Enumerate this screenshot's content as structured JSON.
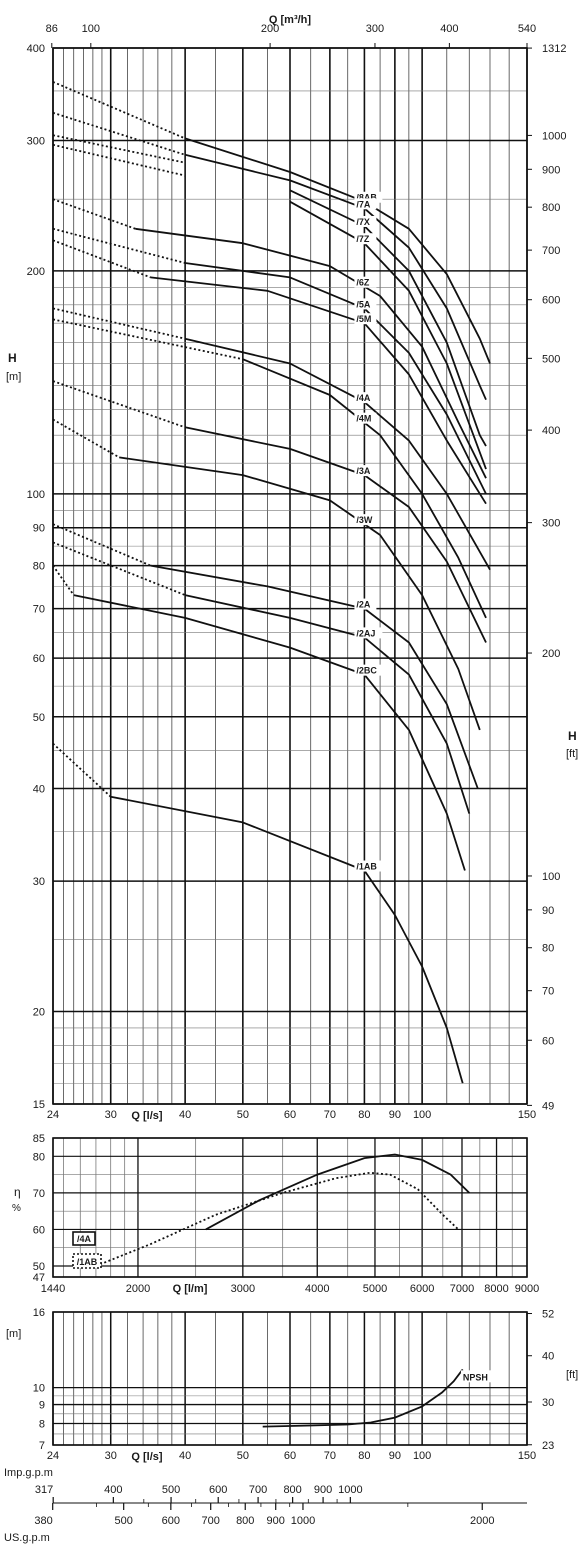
{
  "chart_data": [
    {
      "type": "line",
      "id": "head",
      "xscale": "log",
      "yscale": "log",
      "xlim": [
        24,
        150
      ],
      "ylim": [
        15,
        400
      ],
      "xlabel": "Q [l/s]",
      "ylabel": "H",
      "ylabel_unit": "[m]",
      "top_label": "Q [m³/h]",
      "right_label": "H",
      "right_unit": "[ft]",
      "x_ticks": [
        24,
        30,
        40,
        50,
        60,
        70,
        80,
        90,
        100,
        150
      ],
      "x_ticks_labels": [
        "24",
        "30",
        "40",
        "50",
        "60",
        "70",
        "80",
        "90",
        "100",
        "150"
      ],
      "y_ticks": [
        15,
        20,
        30,
        40,
        50,
        60,
        70,
        80,
        90,
        100,
        200,
        300,
        400
      ],
      "y_ticks_labels": [
        "15",
        "20",
        "30",
        "40",
        "50",
        "60",
        "70",
        "80",
        "90",
        "100",
        "200",
        "300",
        "400"
      ],
      "top_ticks": [
        86,
        100,
        200,
        300,
        400,
        540
      ],
      "top_ticks_labels": [
        "86",
        "100",
        "200",
        "300",
        "400",
        "540"
      ],
      "right_ticks": [
        49,
        60,
        70,
        80,
        90,
        100,
        200,
        300,
        400,
        500,
        600,
        700,
        800,
        900,
        1000,
        1312
      ],
      "right_ticks_labels": [
        "49",
        "60",
        "70",
        "80",
        "90",
        "100",
        "200",
        "300",
        "400",
        "500",
        "600",
        "700",
        "800",
        "900",
        "1000",
        "1312"
      ],
      "series": [
        {
          "name": "/8AB",
          "dotted_end": 40,
          "points": [
            [
              24,
              360
            ],
            [
              40,
              302
            ],
            [
              60,
              272
            ],
            [
              80,
              248
            ],
            [
              95,
              228
            ],
            [
              110,
              198
            ],
            [
              125,
              162
            ],
            [
              130,
              150
            ]
          ]
        },
        {
          "name": "/7A",
          "dotted_end": 40,
          "points": [
            [
              24,
              327
            ],
            [
              40,
              287
            ],
            [
              60,
              265
            ],
            [
              80,
              243
            ],
            [
              95,
              215
            ],
            [
              110,
              178
            ],
            [
              125,
              140
            ],
            [
              128,
              134
            ]
          ]
        },
        {
          "name": "/7X",
          "dotted_end": 50,
          "points": [
            [
              24,
              305
            ],
            [
              40,
              280
            ],
            [
              60,
              257
            ],
            [
              80,
              230
            ],
            [
              95,
              200
            ],
            [
              110,
              160
            ],
            [
              125,
              120
            ],
            [
              128,
              116
            ]
          ]
        },
        {
          "name": "/7Z",
          "dotted_end": 50,
          "points": [
            [
              24,
              296
            ],
            [
              40,
              269
            ],
            [
              60,
              248
            ],
            [
              80,
              218
            ],
            [
              95,
              188
            ],
            [
              110,
              150
            ],
            [
              128,
              108
            ]
          ]
        },
        {
          "name": "/6Z",
          "dotted_end": 33,
          "points": [
            [
              24,
              250
            ],
            [
              33,
              228
            ],
            [
              50,
              218
            ],
            [
              70,
              203
            ],
            [
              85,
              185
            ],
            [
              100,
              158
            ],
            [
              115,
              125
            ],
            [
              128,
              105
            ]
          ]
        },
        {
          "name": "/5A",
          "dotted_end": 40,
          "points": [
            [
              24,
              228
            ],
            [
              40,
              205
            ],
            [
              60,
              196
            ],
            [
              80,
              178
            ],
            [
              95,
              155
            ],
            [
              110,
              128
            ],
            [
              128,
              100
            ]
          ]
        },
        {
          "name": "/5M",
          "dotted_end": 35,
          "points": [
            [
              24,
              220
            ],
            [
              35,
              196
            ],
            [
              55,
              188
            ],
            [
              80,
              170
            ],
            [
              95,
              145
            ],
            [
              110,
              118
            ],
            [
              128,
              97
            ]
          ]
        },
        {
          "name": "/4A",
          "dotted_end": 40,
          "points": [
            [
              24,
              178
            ],
            [
              40,
              162
            ],
            [
              60,
              150
            ],
            [
              80,
              133
            ],
            [
              95,
              118
            ],
            [
              110,
              100
            ],
            [
              130,
              79
            ]
          ]
        },
        {
          "name": "/4M",
          "dotted_end": 50,
          "points": [
            [
              24,
              172
            ],
            [
              50,
              152
            ],
            [
              70,
              136
            ],
            [
              85,
              120
            ],
            [
              100,
              100
            ],
            [
              115,
              82
            ],
            [
              128,
              68
            ]
          ]
        },
        {
          "name": "/3A",
          "dotted_end": 40,
          "points": [
            [
              24,
              142
            ],
            [
              40,
              123
            ],
            [
              60,
              115
            ],
            [
              80,
              106
            ],
            [
              95,
              96
            ],
            [
              110,
              81
            ],
            [
              128,
              63
            ]
          ]
        },
        {
          "name": "/3W",
          "dotted_end": 31,
          "points": [
            [
              24,
              126
            ],
            [
              31,
              112
            ],
            [
              50,
              106
            ],
            [
              70,
              98
            ],
            [
              85,
              88
            ],
            [
              100,
              73
            ],
            [
              115,
              58
            ],
            [
              125,
              48
            ]
          ]
        },
        {
          "name": "/2A",
          "dotted_end": 35,
          "points": [
            [
              24,
              91
            ],
            [
              35,
              80
            ],
            [
              55,
              75
            ],
            [
              80,
              70
            ],
            [
              95,
              63
            ],
            [
              110,
              52
            ],
            [
              124,
              40
            ]
          ]
        },
        {
          "name": "/2AJ",
          "dotted_end": 40,
          "points": [
            [
              24,
              86
            ],
            [
              40,
              73
            ],
            [
              60,
              68
            ],
            [
              80,
              64
            ],
            [
              95,
              57
            ],
            [
              110,
              46
            ],
            [
              120,
              37
            ]
          ]
        },
        {
          "name": "/2BC",
          "dotted_end": 26,
          "points": [
            [
              24,
              80
            ],
            [
              26,
              73
            ],
            [
              40,
              68
            ],
            [
              60,
              62
            ],
            [
              80,
              57
            ],
            [
              95,
              48
            ],
            [
              110,
              37
            ],
            [
              118,
              31
            ]
          ]
        },
        {
          "name": "/1AB",
          "dotted_end": 30,
          "points": [
            [
              24,
              46
            ],
            [
              30,
              39
            ],
            [
              50,
              36
            ],
            [
              80,
              31
            ],
            [
              90,
              27
            ],
            [
              100,
              23
            ],
            [
              110,
              19
            ],
            [
              117,
              16
            ]
          ]
        }
      ]
    },
    {
      "type": "line",
      "id": "efficiency",
      "xscale": "log",
      "xlim": [
        1440,
        9000
      ],
      "ylim": [
        47,
        85
      ],
      "ylabel": "η",
      "ylabel_unit": "%",
      "xlabel": "Q [l/m]",
      "x_ticks": [
        1440,
        2000,
        3000,
        4000,
        5000,
        6000,
        7000,
        8000,
        9000
      ],
      "x_ticks_labels": [
        "1440",
        "2000",
        "3000",
        "4000",
        "5000",
        "6000",
        "7000",
        "8000",
        "9000"
      ],
      "y_ticks": [
        47,
        50,
        60,
        70,
        80,
        85
      ],
      "y_ticks_labels": [
        "47",
        "50",
        "60",
        "70",
        "80",
        "85"
      ],
      "legend": [
        "/4A",
        "/1AB"
      ],
      "series": [
        {
          "name": "/4A",
          "style": "solid",
          "points": [
            [
              2600,
              60
            ],
            [
              3200,
              68
            ],
            [
              4000,
              75
            ],
            [
              4800,
              79.5
            ],
            [
              5400,
              80.5
            ],
            [
              6000,
              79
            ],
            [
              6700,
              75
            ],
            [
              7200,
              70
            ]
          ]
        },
        {
          "name": "/1AB",
          "style": "dotted",
          "points": [
            [
              1700,
              50
            ],
            [
              2100,
              56
            ],
            [
              2700,
              64
            ],
            [
              3500,
              70
            ],
            [
              4300,
              74
            ],
            [
              4900,
              75.5
            ],
            [
              5300,
              75
            ],
            [
              5900,
              71
            ],
            [
              6500,
              64
            ],
            [
              6900,
              60
            ]
          ]
        }
      ]
    },
    {
      "type": "line",
      "id": "npsh",
      "xscale": "log",
      "yscale": "log",
      "xlim": [
        24,
        150
      ],
      "ylim": [
        7,
        16
      ],
      "xlabel": "Q [l/s]",
      "ylabel_unit": "[m]",
      "right_unit": "[ft]",
      "x_ticks": [
        24,
        30,
        40,
        50,
        60,
        70,
        80,
        90,
        100,
        150
      ],
      "x_ticks_labels": [
        "24",
        "30",
        "40",
        "50",
        "60",
        "70",
        "80",
        "90",
        "100",
        "150"
      ],
      "y_ticks": [
        7,
        8,
        9,
        10,
        16
      ],
      "y_ticks_labels": [
        "7",
        "8",
        "9",
        "10",
        "16"
      ],
      "right_ticks": [
        23,
        30,
        40,
        52
      ],
      "right_ticks_labels": [
        "23",
        "30",
        "40",
        "52"
      ],
      "series": [
        {
          "name": "NPSH",
          "style": "solid",
          "points": [
            [
              54,
              7.85
            ],
            [
              65,
              7.9
            ],
            [
              75,
              7.95
            ],
            [
              82,
              8.05
            ],
            [
              90,
              8.3
            ],
            [
              100,
              8.9
            ],
            [
              108,
              9.7
            ],
            [
              113,
              10.4
            ],
            [
              117,
              11.2
            ]
          ]
        }
      ]
    }
  ],
  "imp_gpm": {
    "label": "Imp.g.p.m",
    "start": "317",
    "ticks": [
      317,
      400,
      500,
      600,
      700,
      800,
      900,
      1000
    ],
    "ticks_labels": [
      "317",
      "400",
      "500",
      "600",
      "700",
      "800",
      "900",
      "1000"
    ]
  },
  "us_gpm": {
    "label": "US.g.p.m",
    "start": "380",
    "ticks": [
      380,
      500,
      600,
      700,
      800,
      900,
      1000,
      2000
    ],
    "ticks_labels": [
      "380",
      "500",
      "600",
      "700",
      "800",
      "900",
      "1000",
      "2000"
    ]
  }
}
